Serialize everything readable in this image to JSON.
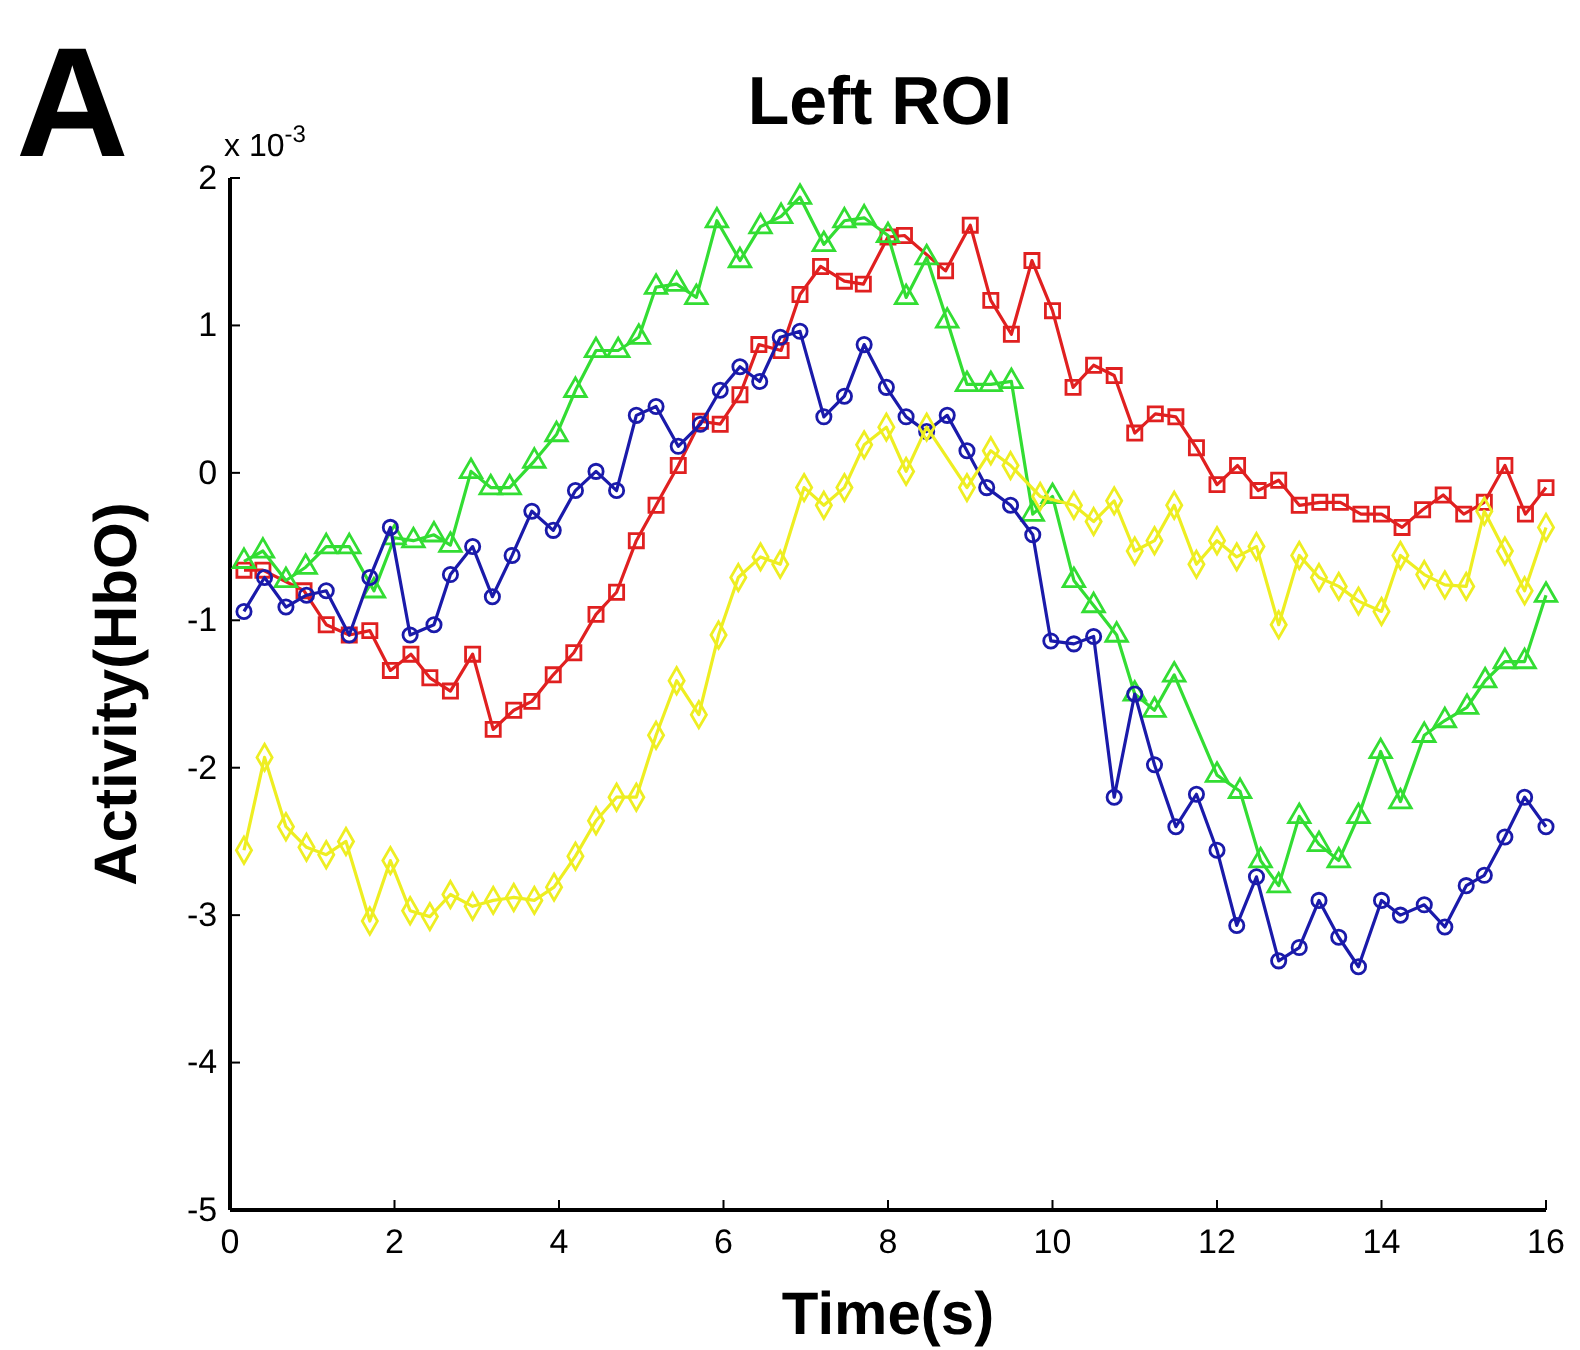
{
  "chart_data": {
    "type": "line",
    "title": "Left ROI",
    "xlabel": "Time(s)",
    "ylabel": "Activity(HbO)",
    "annotations": [
      "A",
      "x 10$^{-3}$"
    ],
    "xlim": [
      0,
      16
    ],
    "xticks": [
      0,
      2,
      4,
      6,
      8,
      10,
      12,
      14,
      16
    ],
    "ylim": [
      -5,
      2
    ],
    "yticks": [
      -5,
      -4,
      -3,
      -2,
      -1,
      0,
      1,
      2
    ],
    "line_style": "solid",
    "series": [
      {
        "color": "#e02020",
        "marker": "square",
        "x": [
          0.17,
          0.4,
          0.9,
          1.17,
          1.45,
          1.7,
          1.95,
          2.2,
          2.43,
          2.68,
          2.95,
          3.2,
          3.45,
          3.67,
          3.93,
          4.18,
          4.45,
          4.7,
          4.94,
          5.18,
          5.45,
          5.72,
          5.96,
          6.2,
          6.43,
          6.7,
          6.93,
          7.18,
          7.47,
          7.7,
          8.0,
          8.2,
          8.7,
          9.0,
          9.25,
          9.5,
          9.75,
          10.0,
          10.25,
          10.5,
          10.75,
          11.0,
          11.25,
          11.5,
          11.75,
          12.0,
          12.25,
          12.5,
          12.75,
          13.0,
          13.25,
          13.5,
          13.75,
          14.0,
          14.25,
          14.5,
          14.75,
          15.0,
          15.25,
          15.5,
          15.75,
          16.0
        ],
        "values": [
          -0.66,
          -0.66,
          -0.8,
          -1.03,
          -1.1,
          -1.07,
          -1.34,
          -1.23,
          -1.39,
          -1.48,
          -1.23,
          -1.74,
          -1.61,
          -1.55,
          -1.37,
          -1.22,
          -0.96,
          -0.81,
          -0.46,
          -0.22,
          0.05,
          0.35,
          0.33,
          0.53,
          0.87,
          0.83,
          1.21,
          1.4,
          1.3,
          1.28,
          1.6,
          1.61,
          1.37,
          1.68,
          1.17,
          0.94,
          1.44,
          1.1,
          0.58,
          0.73,
          0.66,
          0.27,
          0.4,
          0.38,
          0.17,
          -0.08,
          0.05,
          -0.12,
          -0.05,
          -0.22,
          -0.2,
          -0.2,
          -0.28,
          -0.28,
          -0.37,
          -0.25,
          -0.15,
          -0.28,
          -0.2,
          0.05,
          -0.28,
          -0.1
        ]
      },
      {
        "color": "#33dd33",
        "marker": "triangle",
        "x": [
          0.17,
          0.4,
          0.68,
          0.92,
          1.17,
          1.45,
          1.75,
          2.0,
          2.23,
          2.48,
          2.68,
          2.93,
          3.17,
          3.4,
          3.7,
          3.97,
          4.2,
          4.45,
          4.72,
          4.97,
          5.18,
          5.43,
          5.67,
          5.92,
          6.2,
          6.45,
          6.7,
          6.93,
          7.22,
          7.47,
          7.71,
          8.0,
          8.22,
          8.47,
          8.72,
          8.96,
          9.25,
          9.5,
          9.76,
          10.0,
          10.26,
          10.5,
          10.78,
          11.0,
          11.24,
          11.48,
          12.0,
          12.28,
          12.53,
          12.75,
          13.0,
          13.24,
          13.48,
          13.72,
          13.99,
          14.23,
          14.52,
          14.77,
          15.04,
          15.26,
          15.5,
          15.74,
          16.0
        ],
        "values": [
          -0.6,
          -0.53,
          -0.73,
          -0.64,
          -0.5,
          -0.5,
          -0.8,
          -0.44,
          -0.46,
          -0.42,
          -0.49,
          0.01,
          -0.1,
          -0.1,
          0.08,
          0.26,
          0.56,
          0.83,
          0.83,
          0.92,
          1.26,
          1.28,
          1.19,
          1.71,
          1.44,
          1.67,
          1.74,
          1.87,
          1.55,
          1.71,
          1.73,
          1.61,
          1.19,
          1.46,
          1.03,
          0.6,
          0.6,
          0.62,
          -0.28,
          -0.16,
          -0.73,
          -0.9,
          -1.1,
          -1.5,
          -1.61,
          -1.37,
          -2.05,
          -2.16,
          -2.63,
          -2.8,
          -2.33,
          -2.52,
          -2.63,
          -2.33,
          -1.89,
          -2.23,
          -1.78,
          -1.68,
          -1.59,
          -1.41,
          -1.28,
          -1.28,
          -0.83
        ]
      },
      {
        "color": "#1a1aaa",
        "marker": "circle",
        "x": [
          0.17,
          0.42,
          0.68,
          0.93,
          1.17,
          1.45,
          1.7,
          1.95,
          2.19,
          2.48,
          2.68,
          2.95,
          3.19,
          3.43,
          3.67,
          3.93,
          4.2,
          4.45,
          4.7,
          4.94,
          5.18,
          5.45,
          5.72,
          5.96,
          6.2,
          6.44,
          6.69,
          6.93,
          7.22,
          7.47,
          7.71,
          7.98,
          8.22,
          8.47,
          8.72,
          8.96,
          9.2,
          9.49,
          9.76,
          9.98,
          10.26,
          10.5,
          10.75,
          11.0,
          11.24,
          11.5,
          11.75,
          12.0,
          12.24,
          12.48,
          12.75,
          13.0,
          13.24,
          13.48,
          13.72,
          14.0,
          14.23,
          14.52,
          14.77,
          15.03,
          15.25,
          15.5,
          15.74,
          16.0
        ],
        "values": [
          -0.94,
          -0.71,
          -0.91,
          -0.83,
          -0.8,
          -1.1,
          -0.71,
          -0.37,
          -1.1,
          -1.03,
          -0.69,
          -0.5,
          -0.84,
          -0.56,
          -0.26,
          -0.39,
          -0.12,
          0.01,
          -0.12,
          0.39,
          0.45,
          0.18,
          0.33,
          0.56,
          0.72,
          0.62,
          0.92,
          0.96,
          0.38,
          0.52,
          0.87,
          0.58,
          0.38,
          0.28,
          0.39,
          0.15,
          -0.1,
          -0.22,
          -0.42,
          -1.14,
          -1.16,
          -1.11,
          -2.2,
          -1.5,
          -1.98,
          -2.4,
          -2.18,
          -2.56,
          -3.07,
          -2.74,
          -3.31,
          -3.22,
          -2.9,
          -3.15,
          -3.35,
          -2.9,
          -3.0,
          -2.93,
          -3.08,
          -2.8,
          -2.73,
          -2.47,
          -2.2,
          -2.4
        ]
      },
      {
        "color": "#eeee22",
        "marker": "diamond",
        "x": [
          0.17,
          0.42,
          0.68,
          0.93,
          1.17,
          1.41,
          1.7,
          1.95,
          2.19,
          2.43,
          2.68,
          2.95,
          3.2,
          3.45,
          3.7,
          3.94,
          4.2,
          4.45,
          4.7,
          4.94,
          5.18,
          5.43,
          5.7,
          5.94,
          6.18,
          6.45,
          6.69,
          6.98,
          7.22,
          7.47,
          7.71,
          7.98,
          8.22,
          8.47,
          8.96,
          9.25,
          9.49,
          9.85,
          10.26,
          10.5,
          10.75,
          11.0,
          11.24,
          11.48,
          11.75,
          12.0,
          12.24,
          12.48,
          12.75,
          13.0,
          13.24,
          13.48,
          13.72,
          14.0,
          14.23,
          14.52,
          14.77,
          15.03,
          15.25,
          15.5,
          15.74,
          16.0
        ],
        "values": [
          -2.56,
          -1.93,
          -2.4,
          -2.54,
          -2.59,
          -2.5,
          -3.04,
          -2.63,
          -2.97,
          -3.01,
          -2.86,
          -2.94,
          -2.9,
          -2.88,
          -2.9,
          -2.81,
          -2.6,
          -2.36,
          -2.2,
          -2.2,
          -1.78,
          -1.41,
          -1.64,
          -1.1,
          -0.71,
          -0.57,
          -0.62,
          -0.1,
          -0.22,
          -0.1,
          0.19,
          0.31,
          0.01,
          0.31,
          -0.1,
          0.15,
          0.05,
          -0.16,
          -0.22,
          -0.33,
          -0.19,
          -0.53,
          -0.46,
          -0.22,
          -0.62,
          -0.46,
          -0.57,
          -0.5,
          -1.03,
          -0.56,
          -0.71,
          -0.77,
          -0.87,
          -0.94,
          -0.56,
          -0.69,
          -0.76,
          -0.77,
          -0.26,
          -0.53,
          -0.8,
          -0.37
        ]
      }
    ]
  }
}
